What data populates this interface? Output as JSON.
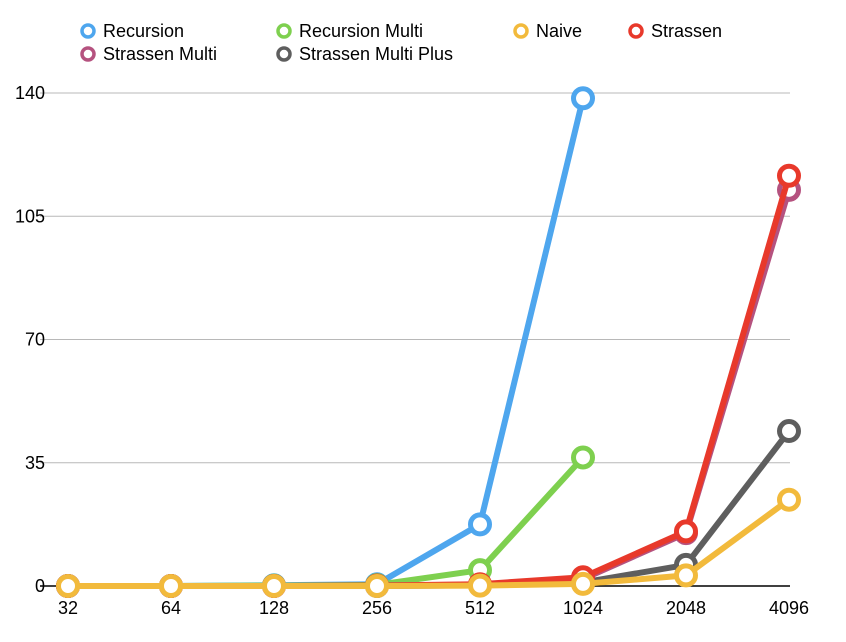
{
  "chart_data": {
    "type": "line",
    "title": "",
    "xlabel": "",
    "ylabel": "",
    "categories": [
      "32",
      "64",
      "128",
      "256",
      "512",
      "1024",
      "2048",
      "4096"
    ],
    "ylim": [
      0,
      140
    ],
    "yticks": [
      0,
      35,
      70,
      105,
      140
    ],
    "grid": true,
    "legend_position": "top",
    "series": [
      {
        "name": "Recursion",
        "color": "#4EA6EE",
        "values": [
          0,
          0,
          0.2,
          0.5,
          17.5,
          138.5,
          null,
          null
        ]
      },
      {
        "name": "Recursion Multi",
        "color": "#7ED04F",
        "values": [
          0,
          0,
          0.1,
          0.3,
          4.5,
          36.5,
          null,
          null
        ]
      },
      {
        "name": "Naive",
        "color": "#F2BA3C",
        "values": [
          0,
          0,
          0,
          0,
          0.1,
          0.6,
          3.0,
          24.5
        ]
      },
      {
        "name": "Strassen",
        "color": "#E8392B",
        "values": [
          0,
          0,
          0,
          0.1,
          0.5,
          2.5,
          15.5,
          116.5
        ]
      },
      {
        "name": "Strassen Multi",
        "color": "#B5527F",
        "values": [
          0,
          0,
          0,
          0.1,
          0.4,
          2.0,
          15.0,
          112.5
        ]
      },
      {
        "name": "Strassen Multi Plus",
        "color": "#5E5E5E",
        "values": [
          0,
          0,
          0,
          0,
          0.2,
          1.0,
          6.0,
          44.0
        ]
      }
    ]
  }
}
